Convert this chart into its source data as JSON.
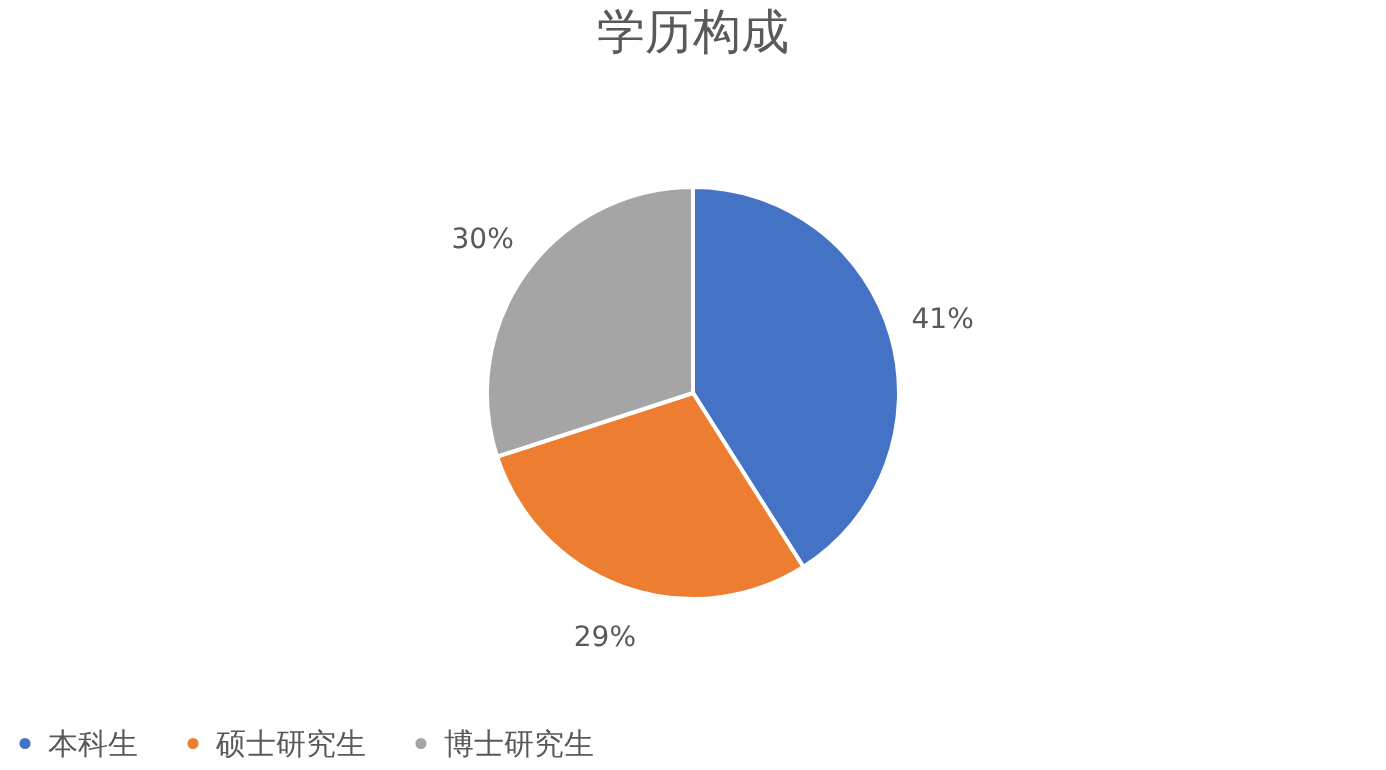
{
  "chart_data": {
    "type": "pie",
    "title": "学历构成",
    "categories": [
      "本科生",
      "硕士研究生",
      "博士研究生"
    ],
    "values": [
      41,
      29,
      30
    ],
    "colors": [
      "#4472c4",
      "#ed7d31",
      "#a5a5a5"
    ],
    "value_labels": [
      "41%",
      "29%",
      "30%"
    ],
    "legend": "bottom"
  }
}
